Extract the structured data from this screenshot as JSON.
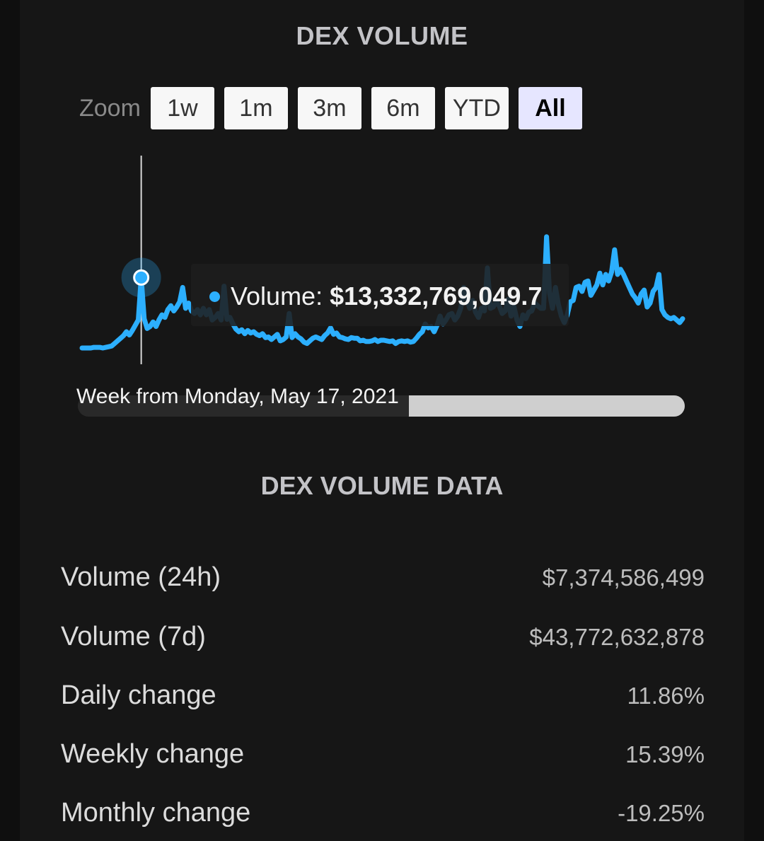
{
  "header": {
    "title": "DEX VOLUME"
  },
  "zoom": {
    "label": "Zoom",
    "options": [
      "1w",
      "1m",
      "3m",
      "6m",
      "YTD",
      "All"
    ],
    "active": "All"
  },
  "tooltip": {
    "series_label": "Volume: ",
    "value": "$13,332,769,049.7",
    "x_label": "Week from Monday, May 17, 2021"
  },
  "chart_data": {
    "type": "line",
    "title": "DEX VOLUME",
    "series": [
      {
        "name": "Volume",
        "color": "#2caffe",
        "values": [
          2.5,
          2.5,
          2.5,
          2.5,
          2.6,
          2.6,
          2.6,
          2.5,
          2.6,
          2.7,
          2.8,
          3.2,
          3.6,
          4.0,
          4.4,
          5.0,
          4.5,
          5.2,
          6.0,
          6.8,
          13.33,
          7.0,
          5.5,
          5.8,
          6.5,
          5.8,
          6.8,
          7.6,
          7.2,
          8.4,
          9.0,
          8.2,
          8.8,
          9.6,
          11.8,
          8.6,
          9.4,
          8.2,
          7.8,
          8.4,
          7.6,
          8.6,
          7.6,
          8.4,
          6.8,
          7.2,
          7.8,
          6.8,
          12.0,
          6.9,
          7.2,
          6.2,
          5.4,
          5.0,
          5.3,
          4.7,
          5.2,
          4.8,
          5.0,
          4.6,
          4.4,
          4.7,
          4.1,
          4.2,
          3.8,
          4.2,
          4.6,
          3.6,
          3.8,
          4.2,
          7.8,
          4.1,
          4.7,
          4.2,
          3.9,
          3.4,
          3.2,
          3.6,
          4.0,
          4.2,
          4.0,
          3.8,
          4.4,
          4.8,
          5.6,
          4.6,
          4.8,
          4.2,
          4.1,
          3.9,
          3.8,
          4.1,
          4.0,
          4.0,
          3.6,
          3.7,
          3.5,
          3.5,
          3.6,
          3.8,
          3.5,
          3.7,
          3.7,
          3.6,
          3.5,
          3.6,
          3.2,
          3.5,
          3.6,
          3.5,
          3.6,
          3.4,
          3.5,
          4.0,
          4.6,
          5.0,
          6.2,
          5.6,
          5.8,
          5.0,
          6.0,
          7.4,
          6.2,
          6.8,
          7.6,
          7.8,
          6.8,
          7.4,
          8.6,
          11.8,
          10.2,
          8.6,
          9.8,
          8.0,
          7.2,
          8.6,
          8.2,
          14.8,
          8.6,
          8.8,
          9.6,
          9.0,
          7.8,
          8.2,
          10.0,
          7.4,
          8.8,
          6.8,
          5.8,
          7.6,
          7.0,
          8.0,
          8.2,
          9.4,
          9.0,
          8.6,
          8.6,
          19.6,
          11.0,
          8.6,
          11.8,
          9.2,
          7.4,
          6.4,
          7.6,
          9.6,
          9.8,
          11.8,
          12.0,
          11.2,
          12.6,
          12.8,
          10.6,
          11.4,
          12.2,
          14.0,
          12.2,
          13.8,
          12.8,
          14.2,
          17.6,
          13.8,
          14.6,
          13.8,
          12.8,
          11.8,
          10.8,
          10.2,
          9.4,
          10.8,
          11.4,
          8.8,
          9.4,
          11.2,
          11.8,
          13.8,
          8.4,
          7.6,
          7.2,
          7.0,
          7.2,
          6.8,
          6.4,
          7.0
        ]
      }
    ],
    "highlight": {
      "label": "Week from Monday, May 17, 2021",
      "value": 13332769049.7
    },
    "legend": "none",
    "grid": false
  },
  "data_section": {
    "title": "DEX VOLUME DATA",
    "rows": [
      {
        "label": "Volume (24h)",
        "value": "$7,374,586,499"
      },
      {
        "label": "Volume (7d)",
        "value": "$43,772,632,878"
      },
      {
        "label": "Daily change",
        "value": "11.86%"
      },
      {
        "label": "Weekly change",
        "value": "15.39%"
      },
      {
        "label": "Monthly change",
        "value": "-19.25%"
      }
    ]
  }
}
